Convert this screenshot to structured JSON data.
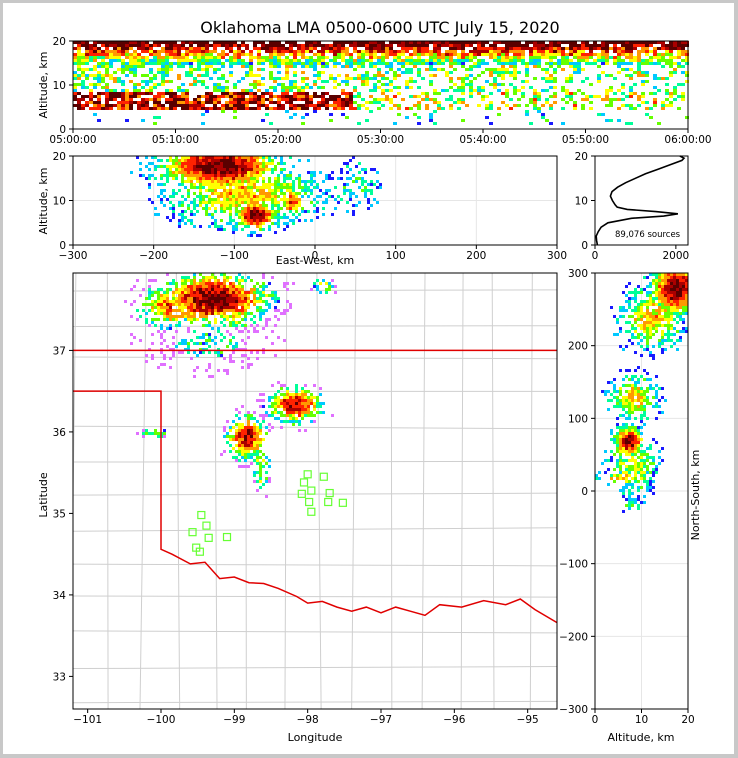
{
  "title": "Oklahoma LMA 0500-0600 UTC July 15, 2020",
  "source_count_label": "89,076 sources",
  "colors": {
    "state_border": "#e00000",
    "county_lines": "#c8c8c8",
    "station_marker": "#66ff33",
    "altitude_profile": "#000000"
  },
  "colormap": [
    "#1a1aff",
    "#00c8ff",
    "#00ff99",
    "#66ff00",
    "#ffff00",
    "#ff9900",
    "#ff2200",
    "#aa0000",
    "#5a0000"
  ],
  "chart_data": [
    {
      "id": "time_height",
      "type": "heatmap",
      "ylabel": "Altitude, km",
      "xlabel": "",
      "x_ticks": [
        "05:00:00",
        "05:10:00",
        "05:20:00",
        "05:30:00",
        "05:40:00",
        "05:50:00",
        "06:00:00"
      ],
      "y_ticks": [
        "0",
        "10",
        "20"
      ],
      "ylim": [
        0,
        20
      ],
      "xlim_minutes": [
        0,
        60
      ],
      "description_bands": [
        {
          "alt_min": 5,
          "alt_max": 9,
          "t_start": 0,
          "t_end": 28,
          "intensity": 0.9
        },
        {
          "alt_min": 15,
          "alt_max": 20,
          "t_start": 0,
          "t_end": 60,
          "intensity": 0.85
        }
      ]
    },
    {
      "id": "ew_height",
      "type": "heatmap",
      "xlabel": "East-West, km",
      "ylabel": "Altitude, km",
      "x_ticks": [
        "−300",
        "−200",
        "−100",
        "0",
        "100",
        "200",
        "300"
      ],
      "y_ticks": [
        "0",
        "10",
        "20"
      ],
      "xlim": [
        -300,
        300
      ],
      "ylim": [
        0,
        20
      ]
    },
    {
      "id": "altitude_histogram",
      "type": "line",
      "xlabel": "",
      "ylabel": "",
      "x_ticks": [
        "0",
        "2000"
      ],
      "y_ticks": [
        "0",
        "10",
        "20"
      ],
      "xlim": [
        0,
        2300
      ],
      "ylim": [
        0,
        20
      ],
      "series": [
        {
          "altitude": [
            0,
            1,
            2,
            3,
            4,
            5,
            6,
            6.5,
            7,
            7.5,
            8,
            8.5,
            9,
            10,
            11,
            12,
            13,
            14,
            15,
            16,
            17,
            18,
            19,
            19.5,
            20
          ],
          "counts": [
            60,
            40,
            30,
            80,
            150,
            320,
            900,
            1700,
            2050,
            1500,
            800,
            550,
            500,
            430,
            380,
            420,
            560,
            760,
            1000,
            1250,
            1550,
            1850,
            2150,
            2200,
            2100
          ]
        }
      ]
    },
    {
      "id": "plan_view",
      "type": "scatter",
      "xlabel": "Longitude",
      "ylabel": "Latitude",
      "x_ticks": [
        "−101",
        "−100",
        "−99",
        "−98",
        "−97",
        "−96",
        "−95"
      ],
      "y_ticks": [
        "33",
        "34",
        "35",
        "36",
        "37"
      ],
      "xlim": [
        -101.2,
        -94.6
      ],
      "ylim": [
        32.6,
        37.95
      ],
      "stations": [
        {
          "lon": -99.45,
          "lat": 34.98
        },
        {
          "lon": -99.38,
          "lat": 34.85
        },
        {
          "lon": -99.57,
          "lat": 34.77
        },
        {
          "lon": -99.35,
          "lat": 34.7
        },
        {
          "lon": -99.1,
          "lat": 34.71
        },
        {
          "lon": -99.52,
          "lat": 34.58
        },
        {
          "lon": -99.47,
          "lat": 34.53
        },
        {
          "lon": -98.0,
          "lat": 35.48
        },
        {
          "lon": -98.05,
          "lat": 35.38
        },
        {
          "lon": -97.95,
          "lat": 35.28
        },
        {
          "lon": -98.08,
          "lat": 35.24
        },
        {
          "lon": -97.98,
          "lat": 35.14
        },
        {
          "lon": -97.95,
          "lat": 35.02
        },
        {
          "lon": -97.78,
          "lat": 35.45
        },
        {
          "lon": -97.7,
          "lat": 35.25
        },
        {
          "lon": -97.72,
          "lat": 35.14
        },
        {
          "lon": -97.52,
          "lat": 35.13
        }
      ]
    },
    {
      "id": "ns_height",
      "type": "heatmap",
      "xlabel": "Altitude, km",
      "ylabel": "North-South, km",
      "x_ticks": [
        "0",
        "10",
        "20"
      ],
      "y_ticks": [
        "−300",
        "−200",
        "−100",
        "0",
        "100",
        "200",
        "300"
      ],
      "xlim": [
        0,
        20
      ],
      "ylim": [
        -300,
        300
      ]
    }
  ]
}
